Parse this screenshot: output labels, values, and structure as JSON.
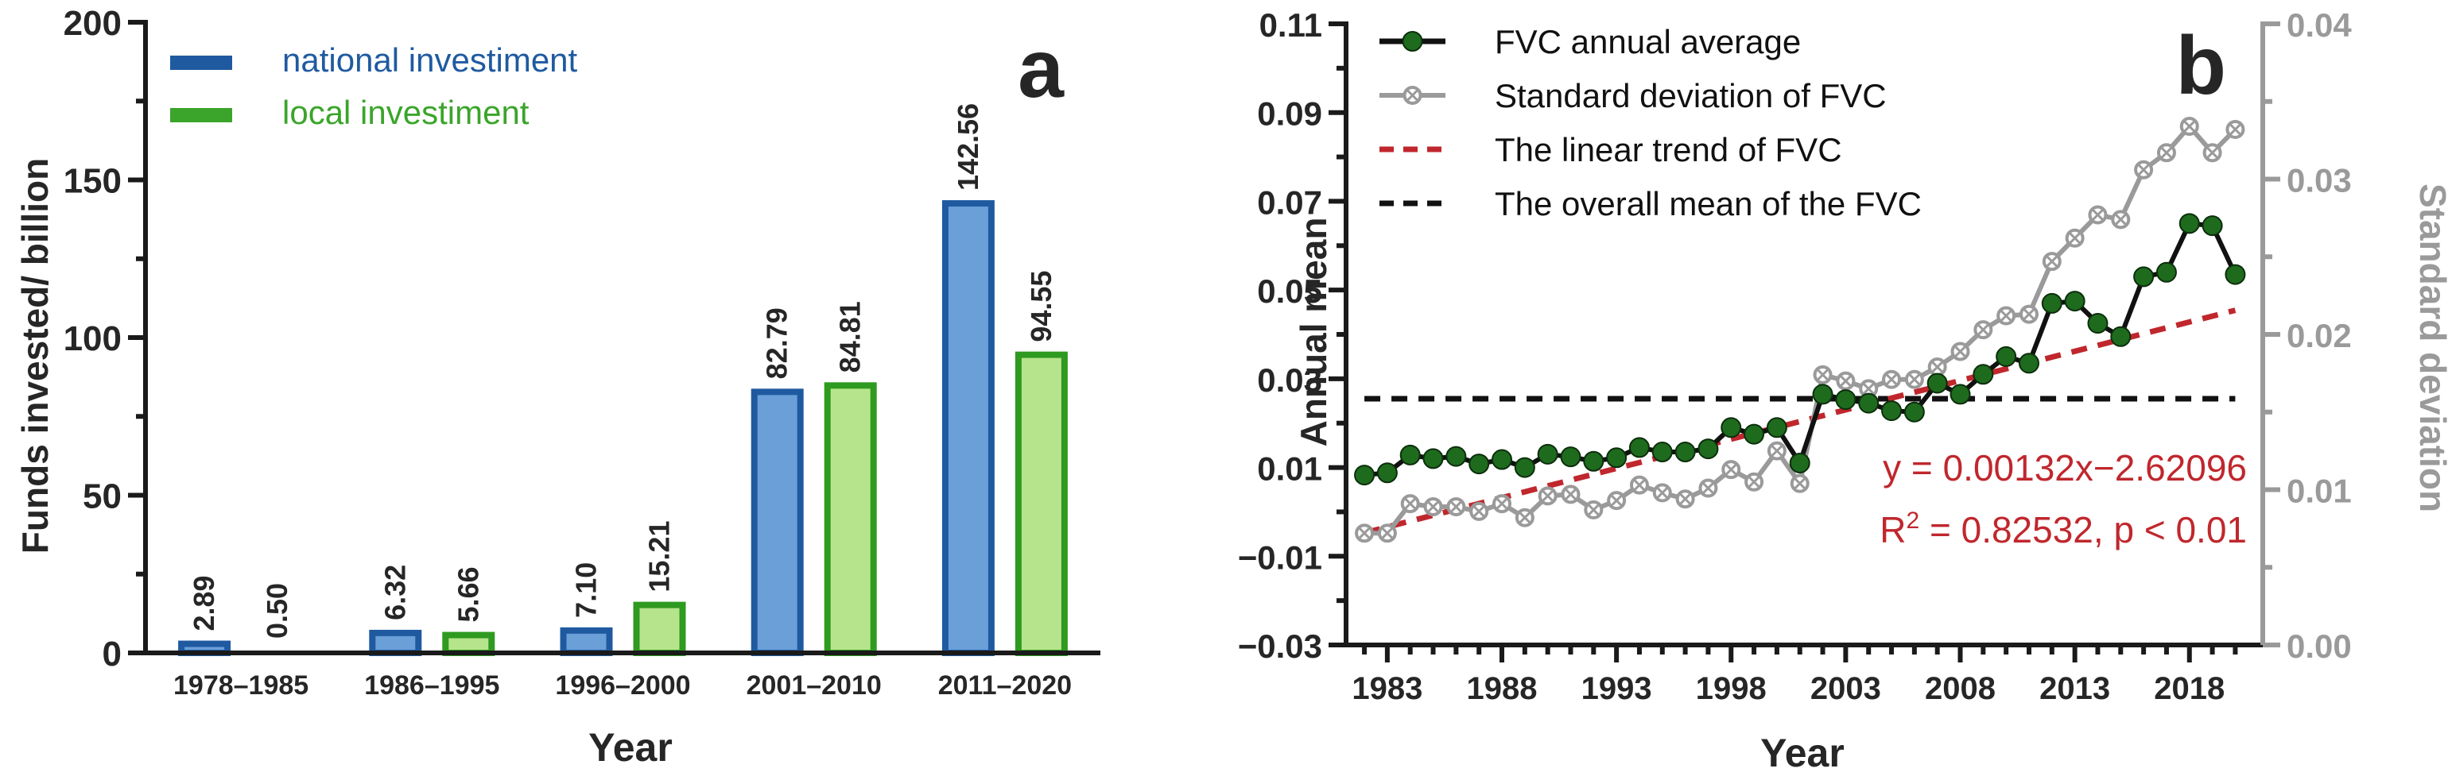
{
  "chart_data": [
    {
      "type": "bar",
      "panel_label": "a",
      "categories": [
        "1978–1985",
        "1986–1995",
        "1996–2000",
        "2001–2010",
        "2011–2020"
      ],
      "series": [
        {
          "name": "national investiment",
          "values": [
            2.89,
            6.32,
            7.1,
            82.79,
            142.56
          ],
          "labels": [
            "2.89",
            "6.32",
            "7.10",
            "82.79",
            "142.56"
          ],
          "edge_color": "#1f5aa0",
          "fill_color": "#6a9fd8",
          "legend_color": "#1f5aa0"
        },
        {
          "name": "local investiment",
          "values": [
            0.5,
            5.66,
            15.21,
            84.81,
            94.55
          ],
          "labels": [
            "0.50",
            "5.66",
            "15.21",
            "84.81",
            "94.55"
          ],
          "edge_color": "#2e9a1f",
          "fill_color": "#b6e48c",
          "legend_color": "#3aa52a"
        }
      ],
      "xlabel": "Year",
      "ylabel": "Funds invested/ billion",
      "ylim": [
        0,
        200
      ],
      "yticks": [
        "0",
        "50",
        "100",
        "150",
        "200"
      ],
      "legend_position": "top-left"
    },
    {
      "type": "line",
      "panel_label": "b",
      "x": [
        1982,
        1983,
        1984,
        1985,
        1986,
        1987,
        1988,
        1989,
        1990,
        1991,
        1992,
        1993,
        1994,
        1995,
        1996,
        1997,
        1998,
        1999,
        2000,
        2001,
        2002,
        2003,
        2004,
        2005,
        2006,
        2007,
        2008,
        2009,
        2010,
        2011,
        2012,
        2013,
        2014,
        2015,
        2016,
        2017,
        2018,
        2019,
        2020
      ],
      "series": [
        {
          "name": "FVC annual average",
          "axis": "left",
          "color": "#111111",
          "marker_fill": "#1e6b1e",
          "values": [
            0.0083,
            0.0088,
            0.0128,
            0.012,
            0.0125,
            0.0108,
            0.0118,
            0.01,
            0.013,
            0.0124,
            0.0114,
            0.0122,
            0.0145,
            0.0135,
            0.0135,
            0.0142,
            0.019,
            0.0175,
            0.019,
            0.011,
            0.0265,
            0.0253,
            0.0245,
            0.0228,
            0.0225,
            0.029,
            0.0265,
            0.031,
            0.035,
            0.0335,
            0.047,
            0.0475,
            0.0425,
            0.0395,
            0.053,
            0.054,
            0.065,
            0.0645,
            0.0535
          ]
        },
        {
          "name": "Standard deviation of FVC",
          "axis": "right",
          "color": "#9a9a9a",
          "values": [
            0.0072,
            0.0072,
            0.0091,
            0.0089,
            0.0089,
            0.0086,
            0.0091,
            0.0082,
            0.0096,
            0.0097,
            0.0087,
            0.0093,
            0.0103,
            0.0098,
            0.0094,
            0.0101,
            0.0113,
            0.0105,
            0.0125,
            0.0104,
            0.0174,
            0.017,
            0.0165,
            0.0171,
            0.0171,
            0.0179,
            0.0189,
            0.0203,
            0.0212,
            0.0213,
            0.0247,
            0.0262,
            0.0277,
            0.0274,
            0.0306,
            0.0317,
            0.0334,
            0.0317,
            0.0332
          ]
        },
        {
          "name": "The linear trend of FVC",
          "axis": "left",
          "color": "#c0272d",
          "style": "dashed",
          "slope": 0.00132,
          "intercept": -2.62096
        },
        {
          "name": "The overall mean of the FVC",
          "axis": "left",
          "color": "#111111",
          "style": "dashed",
          "value": 0.0255
        }
      ],
      "xlabel": "Year",
      "xticks": [
        "1983",
        "1988",
        "1993",
        "1998",
        "2003",
        "2008",
        "2013",
        "2018"
      ],
      "ylabel": "Annual mean",
      "ylim": [
        -0.03,
        0.11
      ],
      "yticks": [
        "−0.03",
        "−0.01",
        "0.01",
        "0.03",
        "0.05",
        "0.07",
        "0.09",
        "0.11"
      ],
      "y2label": "Standard deviation",
      "y2lim": [
        0.0,
        0.04
      ],
      "y2ticks": [
        "0.00",
        "0.01",
        "0.02",
        "0.03",
        "0.04"
      ],
      "equation": "y = 0.00132x−2.62096",
      "r2_prefix": "R",
      "r2_sup": "2",
      "r2_rest": " = 0.82532, p < 0.01",
      "legend_position": "top-left"
    }
  ]
}
